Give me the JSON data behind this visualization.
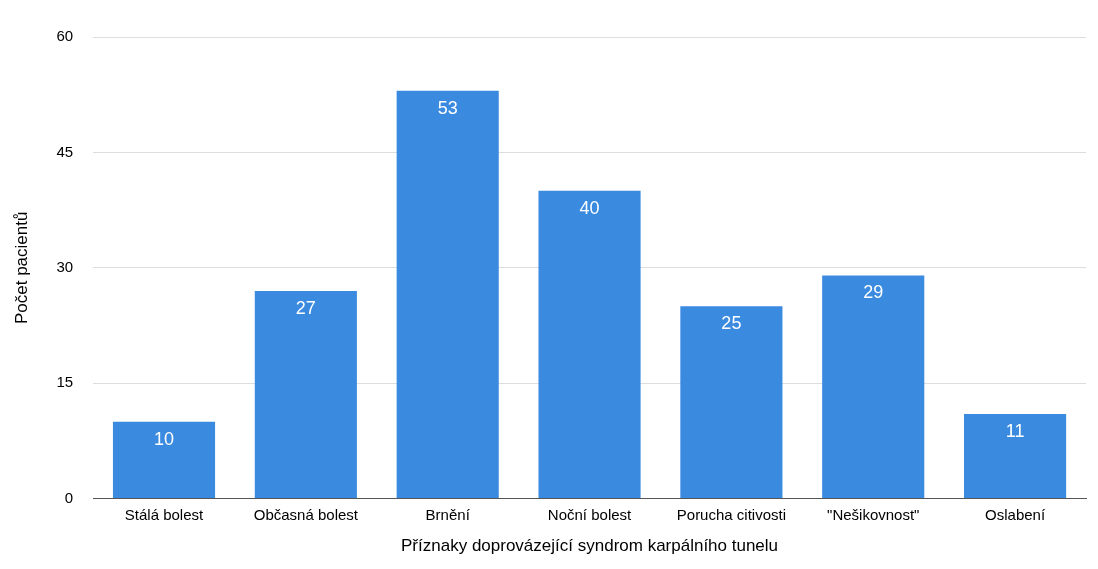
{
  "chart_data": {
    "type": "bar",
    "xlabel": "Příznaky doprovázející syndrom karpálního tunelu",
    "ylabel": "Počet pacientů",
    "categories": [
      "Stálá bolest",
      "Občasná bolest",
      "Brnění",
      "Noční bolest",
      "Porucha citivosti",
      "\"Nešikovnost\"",
      "Oslabení"
    ],
    "values": [
      10,
      27,
      53,
      40,
      25,
      29,
      11
    ],
    "color": "#3a8ae0",
    "ylim": [
      0,
      60
    ],
    "yticks": [
      0,
      15,
      30,
      45,
      60
    ],
    "grid": "y",
    "data_labels": true
  }
}
